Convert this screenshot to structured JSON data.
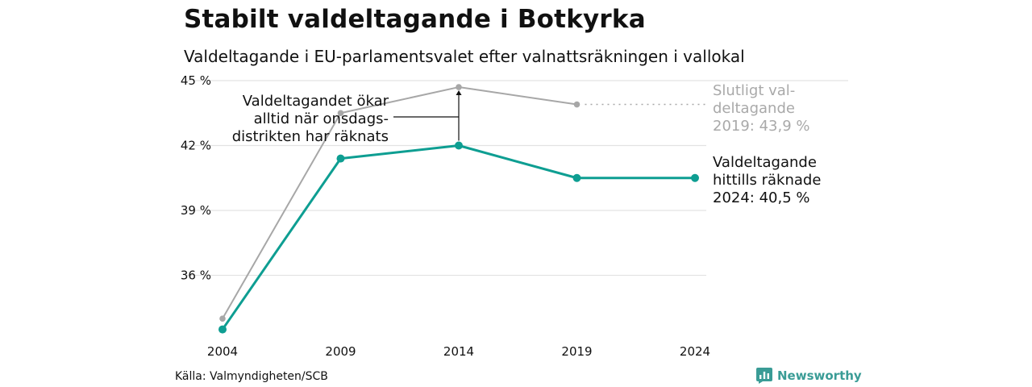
{
  "title": "Stabilt valdeltagande i Botkyrka",
  "subtitle": "Valdeltagande i EU-parlamentsvalet efter valnattsräkningen i vallokal",
  "source": "Källa: Valmyndigheten/SCB",
  "brand": "Newsworthy",
  "colors": {
    "counted": "#0e9e92",
    "final": "#a7a7a7",
    "final_label": "#a9a9a9",
    "grid": "#e3e3e3",
    "brand": "#3a9c96"
  },
  "chart_data": {
    "type": "line",
    "x": [
      "2004",
      "2009",
      "2014",
      "2019",
      "2024"
    ],
    "ylim": [
      33,
      45
    ],
    "y_ticks": [
      36,
      39,
      42,
      45
    ],
    "y_tick_labels": [
      "36 %",
      "39 %",
      "42 %",
      "45 %"
    ],
    "grid": true,
    "series": [
      {
        "key": "final",
        "values": [
          34.0,
          43.5,
          44.7,
          43.9,
          null
        ]
      },
      {
        "key": "counted",
        "values": [
          33.5,
          41.4,
          42.0,
          40.5,
          40.5
        ]
      }
    ],
    "annotations": {
      "final_label": [
        "Slutligt val-",
        "deltagande",
        "2019: 43,9 %"
      ],
      "counted_label": [
        "Valdeltagande",
        "hittills räknade",
        "2024: 40,5 %"
      ],
      "note": [
        "Valdeltagandet ökar",
        "alltid när onsdags-",
        "distrikten har räknats"
      ]
    }
  }
}
